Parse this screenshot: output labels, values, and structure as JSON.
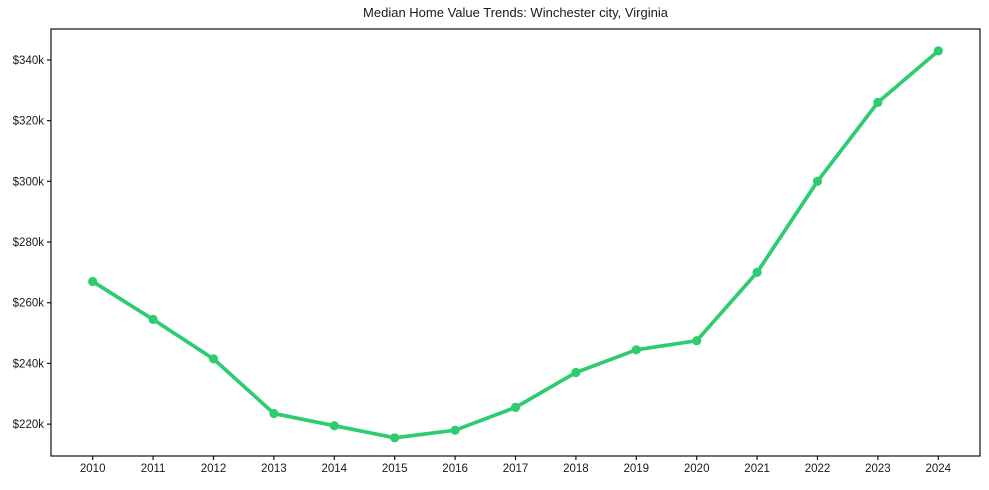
{
  "chart_data": {
    "type": "line",
    "title": "Median Home Value Trends: Winchester city, Virginia",
    "x": [
      2010,
      2011,
      2012,
      2013,
      2014,
      2015,
      2016,
      2017,
      2018,
      2019,
      2020,
      2021,
      2022,
      2023,
      2024
    ],
    "series": [
      {
        "name": "median-home-value",
        "color": "#2ecc71",
        "values": [
          267000,
          254500,
          241500,
          223500,
          219500,
          215500,
          218000,
          225500,
          237000,
          244500,
          247500,
          270000,
          300000,
          326000,
          343000
        ]
      }
    ],
    "xlabel": "",
    "ylabel": "",
    "xtick_labels": [
      "2010",
      "2011",
      "2012",
      "2013",
      "2014",
      "2015",
      "2016",
      "2017",
      "2018",
      "2019",
      "2020",
      "2021",
      "2022",
      "2023",
      "2024"
    ],
    "yticks": [
      220000,
      240000,
      260000,
      280000,
      300000,
      320000,
      340000
    ],
    "ytick_labels": [
      "$220k",
      "$240k",
      "$260k",
      "$280k",
      "$300k",
      "$320k",
      "$340k"
    ],
    "ylim": [
      209500,
      350200
    ],
    "grid": false,
    "legend": false,
    "marker": "circle",
    "line_width": 3.7,
    "marker_radius": 4.6,
    "axis_color": "#111111",
    "text_color": "#1a1a1a",
    "background": "#ffffff"
  }
}
